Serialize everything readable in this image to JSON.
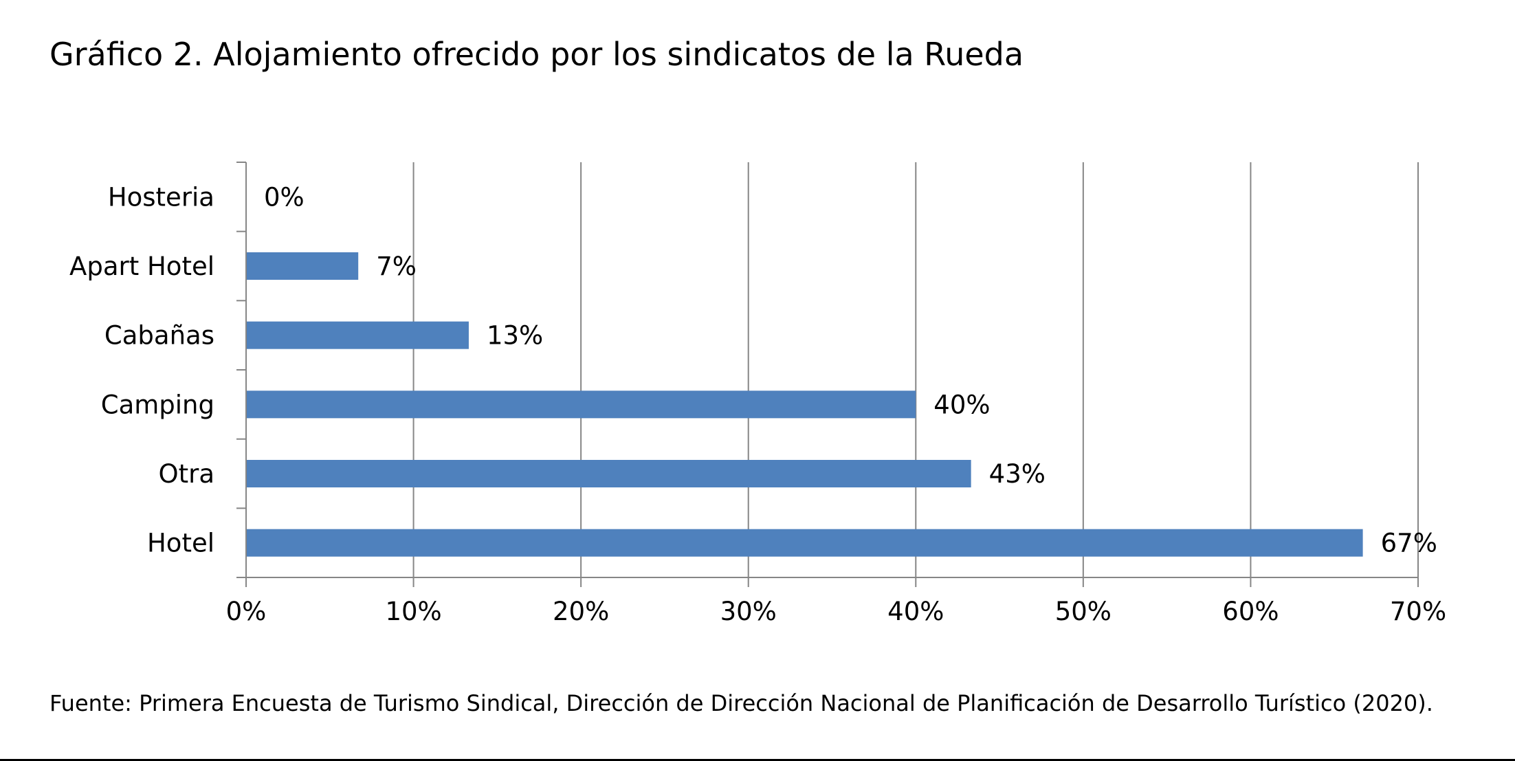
{
  "chart_data": {
    "type": "bar",
    "orientation": "horizontal",
    "title": "Gráfico 2. Alojamiento ofrecido por los sindicatos de la Rueda",
    "source": "Fuente: Primera Encuesta de Turismo Sindical, Dirección de Dirección Nacional de Planificación de Desarrollo Turístico (2020).",
    "categories": [
      "Hosteria",
      "Apart Hotel",
      "Cabañas",
      "Camping",
      "Otra",
      "Hotel"
    ],
    "values": [
      0,
      6.7,
      13.3,
      40,
      43.3,
      66.7
    ],
    "data_labels": [
      "0%",
      "7%",
      "13%",
      "40%",
      "43%",
      "67%"
    ],
    "x_ticks": [
      0,
      10,
      20,
      30,
      40,
      50,
      60,
      70
    ],
    "x_tick_labels": [
      "0%",
      "10%",
      "20%",
      "30%",
      "40%",
      "50%",
      "60%",
      "70%"
    ],
    "xlim": [
      0,
      70
    ],
    "xlabel": "",
    "ylabel": "",
    "grid": "vertical",
    "legend": "none",
    "bar_color": "#4F81BD",
    "grid_color": "#868686"
  }
}
